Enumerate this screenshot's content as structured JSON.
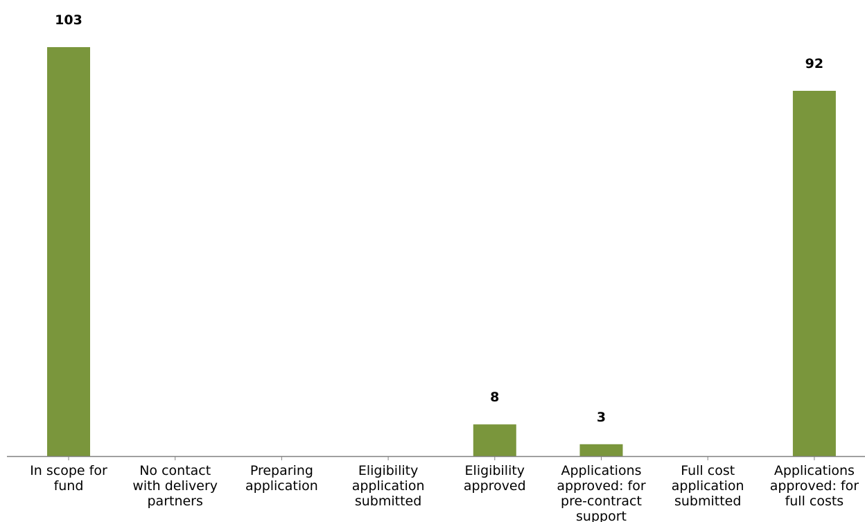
{
  "chart_data": {
    "type": "bar",
    "categories": [
      [
        "In scope for",
        "fund"
      ],
      [
        "No contact",
        "with delivery",
        "partners"
      ],
      [
        "Preparing",
        "application"
      ],
      [
        "Eligibility",
        "application",
        "submitted"
      ],
      [
        "Eligibility",
        "approved"
      ],
      [
        "Applications",
        "approved: for",
        "pre-contract",
        "support"
      ],
      [
        "Full cost",
        "application",
        "submitted"
      ],
      [
        "Applications",
        "approved: for",
        "full costs"
      ]
    ],
    "values": [
      103,
      null,
      null,
      null,
      8,
      3,
      null,
      92
    ],
    "data_labels": [
      "103",
      "",
      "",
      "",
      "8",
      "3",
      "",
      "92"
    ],
    "ylim": [
      0,
      103
    ],
    "grid": false,
    "bar_color": "#7a963c",
    "axis_color": "#808080"
  }
}
